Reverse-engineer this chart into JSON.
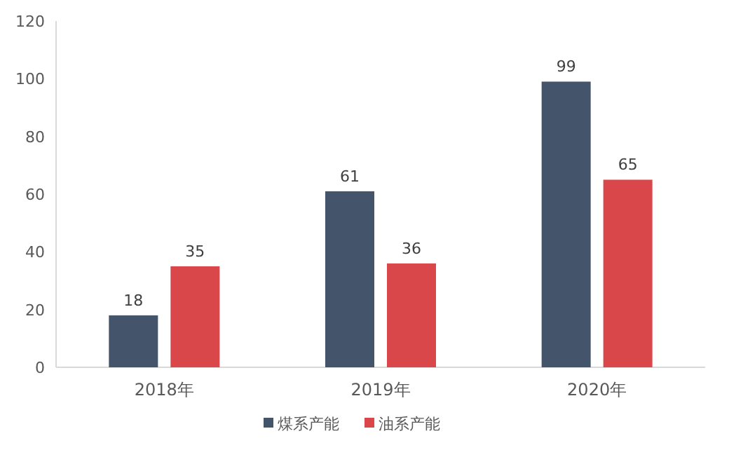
{
  "chart_data": {
    "type": "bar",
    "categories": [
      "2018年",
      "2019年",
      "2020年"
    ],
    "series": [
      {
        "name": "煤系产能",
        "color": "#44546a",
        "values": [
          18,
          61,
          99
        ]
      },
      {
        "name": "油系产能",
        "color": "#d9474b",
        "values": [
          35,
          36,
          65
        ]
      }
    ],
    "ylim": [
      0,
      120
    ],
    "yticks": [
      0,
      20,
      40,
      60,
      80,
      100,
      120
    ],
    "data_labels": true,
    "legend": "bottom"
  }
}
